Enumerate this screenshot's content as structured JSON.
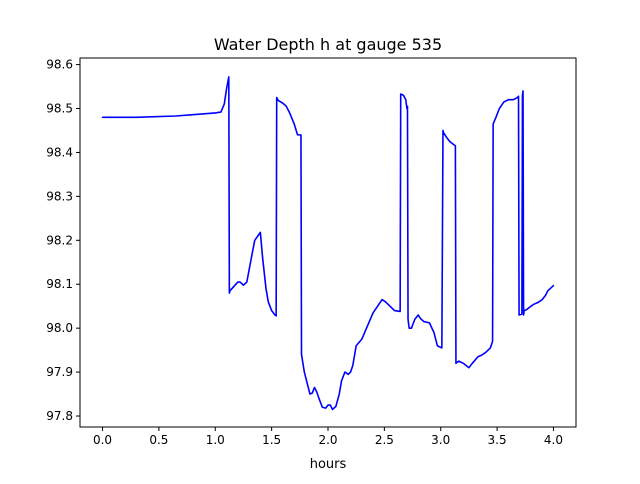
{
  "chart_data": {
    "type": "line",
    "title": "Water Depth h at gauge 535",
    "xlabel": "hours",
    "ylabel": "",
    "xlim": [
      -0.2,
      4.2
    ],
    "ylim": [
      97.775,
      98.615
    ],
    "xticks": [
      0.0,
      0.5,
      1.0,
      1.5,
      2.0,
      2.5,
      3.0,
      3.5,
      4.0
    ],
    "xtick_labels": [
      "0.0",
      "0.5",
      "1.0",
      "1.5",
      "2.0",
      "2.5",
      "3.0",
      "3.5",
      "4.0"
    ],
    "yticks": [
      97.8,
      97.9,
      98.0,
      98.1,
      98.2,
      98.3,
      98.4,
      98.5,
      98.6
    ],
    "ytick_labels": [
      "97.8",
      "97.9",
      "98.0",
      "98.1",
      "98.2",
      "98.3",
      "98.4",
      "98.5",
      "98.6"
    ],
    "grid": false,
    "legend": false,
    "series": [
      {
        "color": "#0000ff",
        "x": [
          0.0,
          0.3,
          0.65,
          0.8,
          1.0,
          1.05,
          1.08,
          1.1,
          1.12,
          1.125,
          1.13,
          1.2,
          1.22,
          1.25,
          1.28,
          1.32,
          1.35,
          1.4,
          1.42,
          1.45,
          1.47,
          1.5,
          1.53,
          1.54,
          1.545,
          1.56,
          1.6,
          1.63,
          1.66,
          1.7,
          1.73,
          1.76,
          1.765,
          1.79,
          1.82,
          1.84,
          1.86,
          1.88,
          1.9,
          1.92,
          1.95,
          1.98,
          2.0,
          2.02,
          2.04,
          2.07,
          2.1,
          2.12,
          2.15,
          2.18,
          2.2,
          2.22,
          2.25,
          2.3,
          2.35,
          2.4,
          2.44,
          2.48,
          2.51,
          2.55,
          2.59,
          2.64,
          2.645,
          2.67,
          2.69,
          2.7,
          2.705,
          2.71,
          2.72,
          2.74,
          2.77,
          2.8,
          2.82,
          2.85,
          2.9,
          2.94,
          2.97,
          3.01,
          3.02,
          3.025,
          3.05,
          3.08,
          3.13,
          3.135,
          3.16,
          3.2,
          3.25,
          3.28,
          3.33,
          3.36,
          3.4,
          3.44,
          3.46,
          3.465,
          3.49,
          3.52,
          3.56,
          3.6,
          3.64,
          3.66,
          3.68,
          3.69,
          3.695,
          3.72,
          3.725,
          3.73,
          3.735,
          3.74,
          3.76,
          3.8,
          3.83,
          3.86,
          3.9,
          3.93,
          3.95,
          4.0
        ],
        "y": [
          98.48,
          98.48,
          98.483,
          98.486,
          98.49,
          98.492,
          98.51,
          98.545,
          98.572,
          98.08,
          98.085,
          98.105,
          98.105,
          98.098,
          98.105,
          98.16,
          98.2,
          98.218,
          98.16,
          98.09,
          98.06,
          98.04,
          98.03,
          98.028,
          98.525,
          98.518,
          98.512,
          98.505,
          98.49,
          98.465,
          98.44,
          98.44,
          97.94,
          97.9,
          97.87,
          97.85,
          97.852,
          97.865,
          97.855,
          97.84,
          97.82,
          97.818,
          97.825,
          97.825,
          97.815,
          97.822,
          97.85,
          97.88,
          97.9,
          97.895,
          97.9,
          97.915,
          97.96,
          97.975,
          98.005,
          98.035,
          98.05,
          98.065,
          98.06,
          98.05,
          98.04,
          98.038,
          98.533,
          98.53,
          98.52,
          98.5,
          98.505,
          98.02,
          98.0,
          98.0,
          98.02,
          98.03,
          98.022,
          98.015,
          98.012,
          97.99,
          97.96,
          97.955,
          98.45,
          98.445,
          98.435,
          98.425,
          98.415,
          97.92,
          97.925,
          97.92,
          97.91,
          97.92,
          97.935,
          97.938,
          97.945,
          97.955,
          97.97,
          98.465,
          98.48,
          98.5,
          98.515,
          98.52,
          98.52,
          98.522,
          98.525,
          98.528,
          98.03,
          98.032,
          98.53,
          98.54,
          98.03,
          98.04,
          98.042,
          98.05,
          98.055,
          98.058,
          98.065,
          98.075,
          98.085,
          98.097
        ]
      }
    ]
  }
}
